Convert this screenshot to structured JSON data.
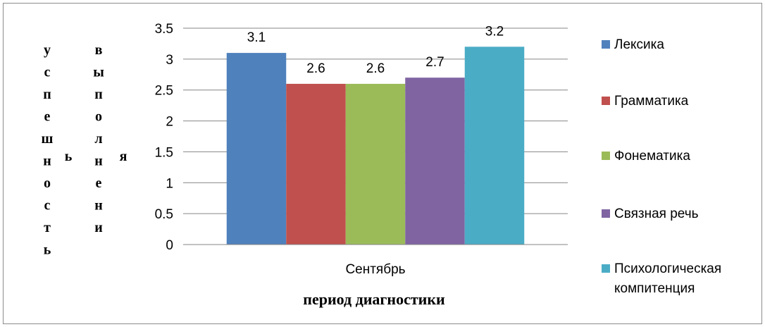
{
  "chart_data": {
    "type": "bar",
    "title": "",
    "categories": [
      "Сентябрь"
    ],
    "series": [
      {
        "name": "Лексика",
        "values": [
          3.1
        ],
        "color": "#4f81bd"
      },
      {
        "name": "Грамматика",
        "values": [
          2.6
        ],
        "color": "#c0504d"
      },
      {
        "name": "Фонематика",
        "values": [
          2.6
        ],
        "color": "#9bbb59"
      },
      {
        "name": "Связная речь",
        "values": [
          2.7
        ],
        "color": "#8064a2"
      },
      {
        "name": "Психологическая компитенция",
        "values": [
          3.2
        ],
        "color": "#4bacc6"
      }
    ],
    "ylim": [
      0,
      3.5
    ],
    "yticks": [
      "0",
      "0.5",
      "1",
      "1.5",
      "2",
      "2.5",
      "3",
      "3.5"
    ],
    "xlabel": "период диагностики",
    "ylabel_columns": [
      "успешность",
      "ь",
      "выполнени",
      "я"
    ],
    "grid": true,
    "legend_position": "right"
  }
}
